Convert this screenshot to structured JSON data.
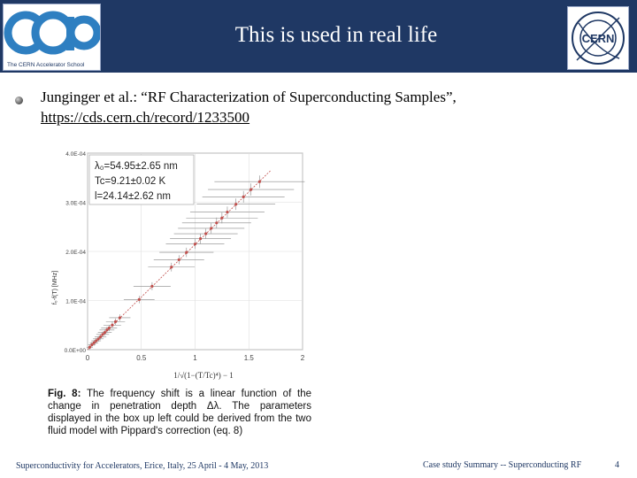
{
  "slide": {
    "title": "This is used in real life",
    "logo_left_caption": "The CERN Accelerator School",
    "logo_right_text": "CERN",
    "reference_text": "Junginger et al.: “RF Characterization of Superconducting Samples”,",
    "reference_link": "https://cds.cern.ch/record/1233500"
  },
  "figure": {
    "annotation_lines": [
      "λ₀=54.95±2.65 nm",
      "Tc=9.21±0.02 K",
      "l=24.14±2.62 nm"
    ],
    "ylabel": "f₀-f(T) [MHz]",
    "xlabel": "1/√(1−(T/Tc)⁴) − 1",
    "caption_label": "Fig. 8:",
    "caption_text": "The frequency shift is a linear function of the change in penetration depth Δλ. The parameters displayed in the box up left could be derived from the two fluid model with Pippard's correction (eq. 8)"
  },
  "chart_data": {
    "type": "scatter",
    "x_ticks": [
      "0",
      "0.5",
      "1",
      "1.5",
      "2"
    ],
    "y_ticks": [
      "0.0E+00",
      "1.0E-04",
      "2.0E-04",
      "3.0E-04",
      "4.0E-04"
    ],
    "xlim": [
      0,
      2
    ],
    "ylim": [
      0,
      0.0004
    ],
    "grid": true,
    "x": [
      0.02,
      0.04,
      0.06,
      0.08,
      0.1,
      0.12,
      0.14,
      0.16,
      0.18,
      0.2,
      0.23,
      0.26,
      0.3,
      0.48,
      0.6,
      0.78,
      0.85,
      0.92,
      1.0,
      1.05,
      1.1,
      1.15,
      1.2,
      1.25,
      1.3,
      1.38,
      1.45,
      1.52,
      1.6
    ],
    "y": [
      5e-06,
      1e-05,
      1.4e-05,
      1.8e-05,
      2.2e-05,
      2.6e-05,
      3.1e-05,
      3.5e-05,
      4e-05,
      4.4e-05,
      5e-05,
      5.7e-05,
      6.5e-05,
      0.000102,
      0.000129,
      0.000168,
      0.000183,
      0.000198,
      0.000215,
      0.000226,
      0.000236,
      0.000247,
      0.000258,
      0.000268,
      0.00028,
      0.000296,
      0.000311,
      0.000326,
      0.000342
    ],
    "fit_line": {
      "x": [
        0,
        1.7
      ],
      "y": [
        0,
        0.000364
      ]
    }
  },
  "footer": {
    "left": "Superconductivity for Accelerators, Erice, Italy, 25 April - 4 May, 2013",
    "middle": "Case study Summary -- Superconducting RF",
    "page": "4"
  }
}
